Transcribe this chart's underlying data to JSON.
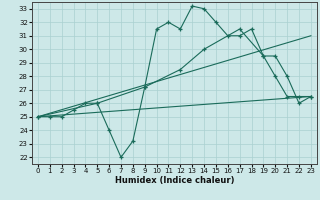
{
  "xlabel": "Humidex (Indice chaleur)",
  "xlim": [
    -0.5,
    23.5
  ],
  "ylim": [
    21.5,
    33.5
  ],
  "yticks": [
    22,
    23,
    24,
    25,
    26,
    27,
    28,
    29,
    30,
    31,
    32,
    33
  ],
  "xticks": [
    0,
    1,
    2,
    3,
    4,
    5,
    6,
    7,
    8,
    9,
    10,
    11,
    12,
    13,
    14,
    15,
    16,
    17,
    18,
    19,
    20,
    21,
    22,
    23
  ],
  "bg_color": "#cde8e8",
  "grid_color": "#aad0d0",
  "line_color": "#1a6b5a",
  "line1_x": [
    0,
    1,
    2,
    3,
    4,
    5,
    6,
    7,
    8,
    9,
    10,
    11,
    12,
    13,
    14,
    15,
    16,
    17,
    18,
    19,
    20,
    21,
    22,
    23
  ],
  "line1_y": [
    25.0,
    25.0,
    25.0,
    25.5,
    26.0,
    26.0,
    24.0,
    22.0,
    23.2,
    27.2,
    31.5,
    32.0,
    31.5,
    33.2,
    33.0,
    32.0,
    31.0,
    31.0,
    31.5,
    29.5,
    28.0,
    26.5,
    26.5,
    26.5
  ],
  "line2_x": [
    0,
    23
  ],
  "line2_y": [
    25.0,
    26.5
  ],
  "line3_x": [
    0,
    23
  ],
  "line3_y": [
    25.0,
    31.0
  ],
  "line4_x": [
    0,
    5,
    9,
    12,
    14,
    17,
    19,
    20,
    21,
    22,
    23
  ],
  "line4_y": [
    25.0,
    26.0,
    27.2,
    28.5,
    30.0,
    31.5,
    29.5,
    29.5,
    28.0,
    26.0,
    26.5
  ]
}
